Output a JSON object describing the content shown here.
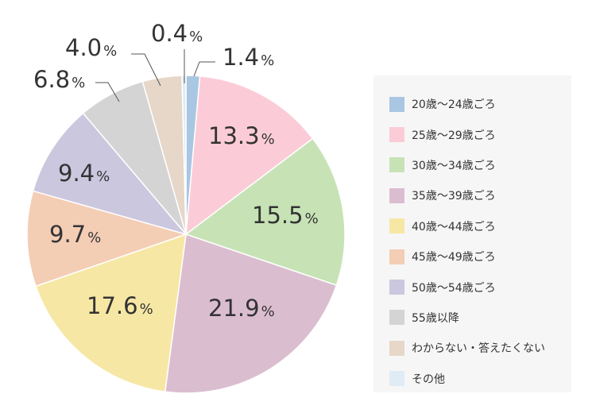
{
  "chart_data": {
    "type": "pie",
    "title": "",
    "percent_symbol": "%",
    "slices": [
      {
        "label": "20歳〜24歳ごろ",
        "value": 1.4,
        "display": "1.4",
        "color": "#a9c6e2"
      },
      {
        "label": "25歳〜29歳ごろ",
        "value": 13.3,
        "display": "13.3",
        "color": "#fbccd7"
      },
      {
        "label": "30歳〜34歳ごろ",
        "value": 15.5,
        "display": "15.5",
        "color": "#c7e3b6"
      },
      {
        "label": "35歳〜39歳ごろ",
        "value": 21.9,
        "display": "21.9",
        "color": "#dbbdd0"
      },
      {
        "label": "40歳〜44歳ごろ",
        "value": 17.6,
        "display": "17.6",
        "color": "#f6e7a4"
      },
      {
        "label": "45歳〜49歳ごろ",
        "value": 9.7,
        "display": "9.7",
        "color": "#f4cdb5"
      },
      {
        "label": "50歳〜54歳ごろ",
        "value": 9.4,
        "display": "9.4",
        "color": "#cbc7de"
      },
      {
        "label": "55歳以降",
        "value": 6.8,
        "display": "6.8",
        "color": "#d4d4d4"
      },
      {
        "label": "わからない・答えたくない",
        "value": 4.0,
        "display": "4.0",
        "color": "#e6d7c9"
      },
      {
        "label": "その他",
        "value": 0.4,
        "display": "0.4",
        "color": "#dfebf5"
      }
    ],
    "legend_position": "right"
  }
}
